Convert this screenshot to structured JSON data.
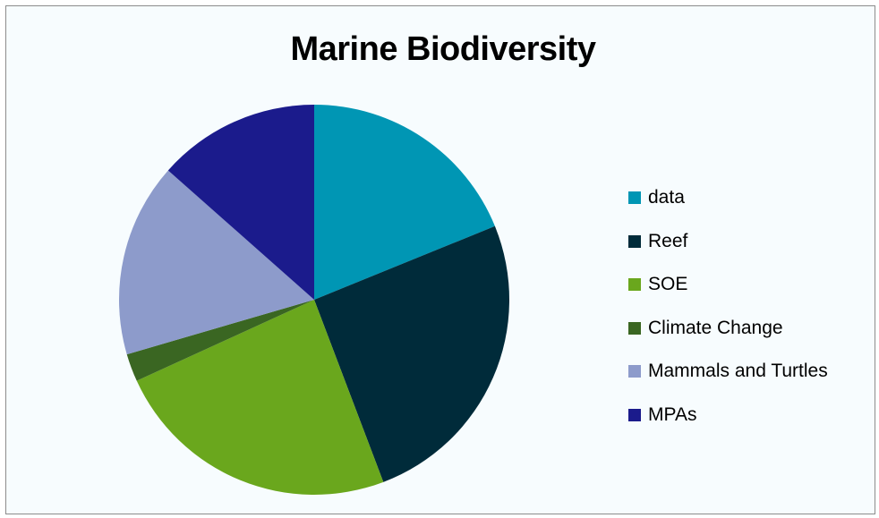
{
  "chart_data": {
    "type": "pie",
    "title": "Marine Biodiversity",
    "categories": [
      "data",
      "Reef",
      "SOE",
      "Climate Change",
      "Mammals and Turtles",
      "MPAs"
    ],
    "values": [
      19.6,
      26.4,
      24.9,
      2.4,
      16.7,
      14.0
    ],
    "colors": [
      "#0096b4",
      "#002b3a",
      "#6aa71d",
      "#3a6622",
      "#8d9bcb",
      "#1b1b8c"
    ],
    "legend_position": "right"
  }
}
